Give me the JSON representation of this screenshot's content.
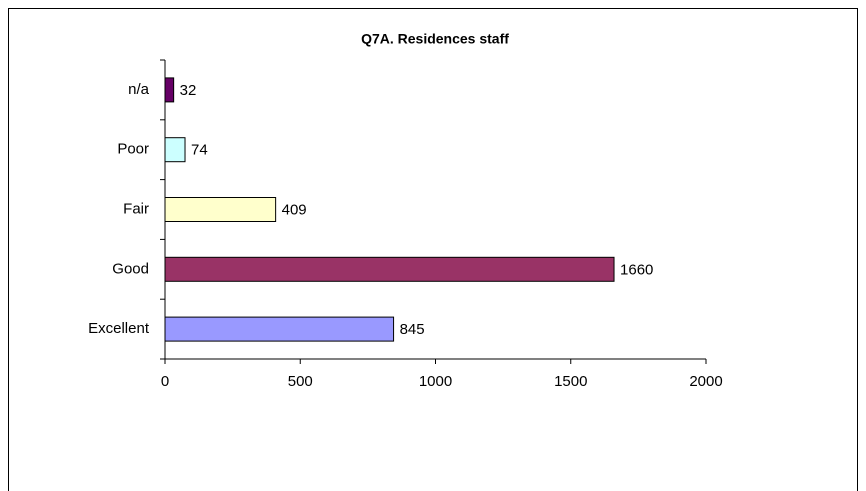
{
  "chart_data": {
    "type": "barh",
    "title": "Q7A.  Residences staff",
    "categories": [
      "Excellent",
      "Good",
      "Fair",
      "Poor",
      "n/a"
    ],
    "values": [
      845,
      1660,
      409,
      74,
      32
    ],
    "colors": [
      "#9999ff",
      "#993366",
      "#ffffcc",
      "#ccffff",
      "#660066"
    ],
    "xlim": [
      0,
      2000
    ],
    "xticks": [
      0,
      500,
      1000,
      1500,
      2000
    ],
    "grid": false
  }
}
